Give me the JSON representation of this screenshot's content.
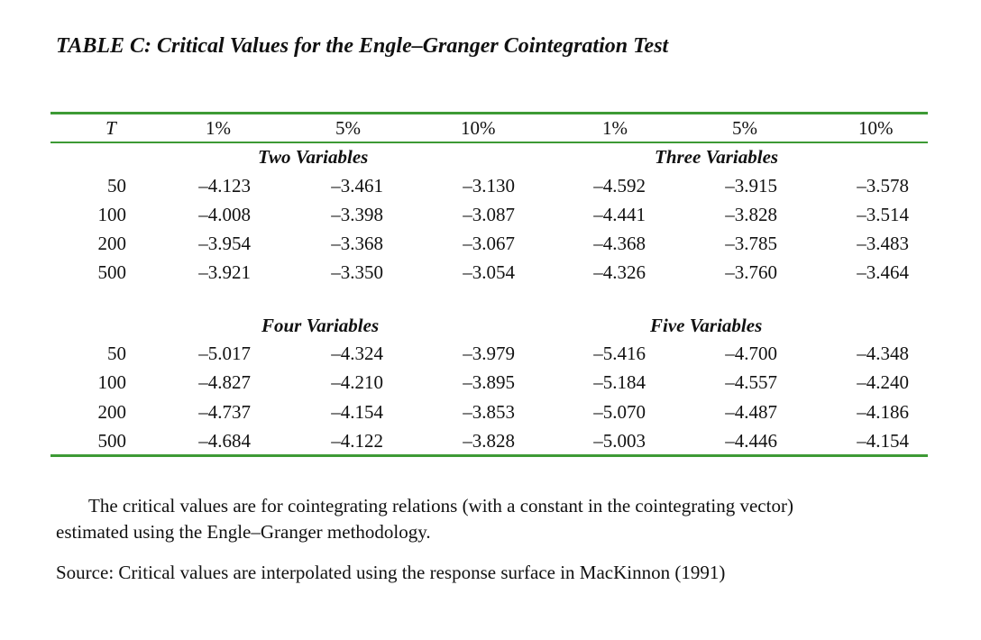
{
  "table": {
    "title": "TABLE C: Critical Values for the Engle–Granger Cointegration Test",
    "header": {
      "t_label": "T",
      "columns": [
        "1%",
        "5%",
        "10%",
        "1%",
        "5%",
        "10%"
      ]
    },
    "panels": [
      {
        "left_group": "Two Variables",
        "right_group": "Three Variables",
        "rows": [
          {
            "t": "50",
            "values": [
              "–4.123",
              "–3.461",
              "–3.130",
              "–4.592",
              "–3.915",
              "–3.578"
            ]
          },
          {
            "t": "100",
            "values": [
              "–4.008",
              "–3.398",
              "–3.087",
              "–4.441",
              "–3.828",
              "–3.514"
            ]
          },
          {
            "t": "200",
            "values": [
              "–3.954",
              "–3.368",
              "–3.067",
              "–4.368",
              "–3.785",
              "–3.483"
            ]
          },
          {
            "t": "500",
            "values": [
              "–3.921",
              "–3.350",
              "–3.054",
              "–4.326",
              "–3.760",
              "–3.464"
            ]
          }
        ]
      },
      {
        "left_group": "Four Variables",
        "right_group": "Five Variables",
        "rows": [
          {
            "t": "50",
            "values": [
              "–5.017",
              "–4.324",
              "–3.979",
              "–5.416",
              "–4.700",
              "–4.348"
            ]
          },
          {
            "t": "100",
            "values": [
              "–4.827",
              "–4.210",
              "–3.895",
              "–5.184",
              "–4.557",
              "–4.240"
            ]
          },
          {
            "t": "200",
            "values": [
              "–4.737",
              "–4.154",
              "–3.853",
              "–5.070",
              "–4.487",
              "–4.186"
            ]
          },
          {
            "t": "500",
            "values": [
              "–4.684",
              "–4.122",
              "–3.828",
              "–5.003",
              "–4.446",
              "–4.154"
            ]
          }
        ]
      }
    ],
    "rule_color": "#3d9a35"
  },
  "notes": {
    "line1": "The critical values are for cointegrating relations (with a constant in the cointegrating vector)",
    "line2": "estimated using the Engle–Granger methodology.",
    "source": "Source: Critical values are interpolated using the response surface in MacKinnon (1991)"
  }
}
